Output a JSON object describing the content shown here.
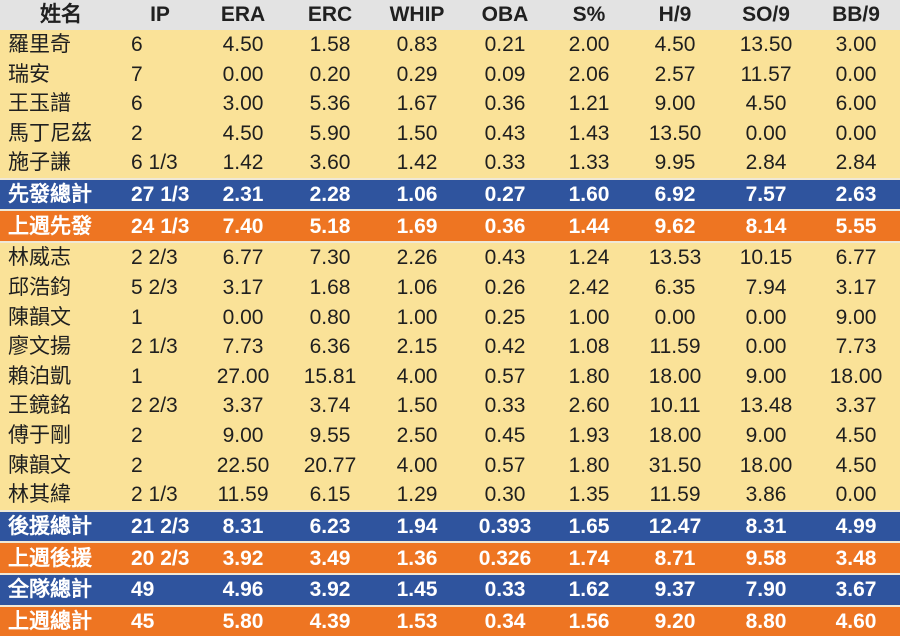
{
  "colors": {
    "row_yellow": "#FAE298",
    "row_blue": "#2F549E",
    "row_orange": "#EE7522",
    "header_bg": "#E3E3E3",
    "separator": "#EFE8D6",
    "text_dark": "#1F1F1F",
    "text_light": "#FFFFFF"
  },
  "chart_data": {
    "type": "table",
    "title": "",
    "legend": {
      "total_row_color": "#2F549E",
      "last_week_row_color": "#EE7522",
      "player_row_color": "#FAE298"
    },
    "columns": [
      {
        "key": "name",
        "label": "姓名"
      },
      {
        "key": "ip",
        "label": "IP"
      },
      {
        "key": "era",
        "label": "ERA"
      },
      {
        "key": "erc",
        "label": "ERC"
      },
      {
        "key": "whip",
        "label": "WHIP"
      },
      {
        "key": "oba",
        "label": "OBA"
      },
      {
        "key": "s_pct",
        "label": "S%"
      },
      {
        "key": "h9",
        "label": "H/9"
      },
      {
        "key": "so9",
        "label": "SO/9"
      },
      {
        "key": "bb9",
        "label": "BB/9"
      }
    ],
    "rows": [
      {
        "type": "player",
        "values": [
          "羅里奇",
          "6",
          "4.50",
          "1.58",
          "0.83",
          "0.21",
          "2.00",
          "4.50",
          "13.50",
          "3.00"
        ]
      },
      {
        "type": "player",
        "values": [
          "瑞安",
          "7",
          "0.00",
          "0.20",
          "0.29",
          "0.09",
          "2.06",
          "2.57",
          "11.57",
          "0.00"
        ]
      },
      {
        "type": "player",
        "values": [
          "王玉譜",
          "6",
          "3.00",
          "5.36",
          "1.67",
          "0.36",
          "1.21",
          "9.00",
          "4.50",
          "6.00"
        ]
      },
      {
        "type": "player",
        "values": [
          "馬丁尼茲",
          "2",
          "4.50",
          "5.90",
          "1.50",
          "0.43",
          "1.43",
          "13.50",
          "0.00",
          "0.00"
        ]
      },
      {
        "type": "player",
        "values": [
          "施子謙",
          "6 1/3",
          "1.42",
          "3.60",
          "1.42",
          "0.33",
          "1.33",
          "9.95",
          "2.84",
          "2.84"
        ]
      },
      {
        "type": "total-blue",
        "values": [
          "先發總計",
          "27 1/3",
          "2.31",
          "2.28",
          "1.06",
          "0.27",
          "1.60",
          "6.92",
          "7.57",
          "2.63"
        ]
      },
      {
        "type": "total-orange",
        "values": [
          "上週先發",
          "24 1/3",
          "7.40",
          "5.18",
          "1.69",
          "0.36",
          "1.44",
          "9.62",
          "8.14",
          "5.55"
        ]
      },
      {
        "type": "player",
        "values": [
          "林威志",
          "2 2/3",
          "6.77",
          "7.30",
          "2.26",
          "0.43",
          "1.24",
          "13.53",
          "10.15",
          "6.77"
        ]
      },
      {
        "type": "player",
        "values": [
          "邱浩鈞",
          "5 2/3",
          "3.17",
          "1.68",
          "1.06",
          "0.26",
          "2.42",
          "6.35",
          "7.94",
          "3.17"
        ]
      },
      {
        "type": "player",
        "values": [
          "陳韻文",
          "1",
          "0.00",
          "0.80",
          "1.00",
          "0.25",
          "1.00",
          "0.00",
          "0.00",
          "9.00"
        ]
      },
      {
        "type": "player",
        "values": [
          "廖文揚",
          "2 1/3",
          "7.73",
          "6.36",
          "2.15",
          "0.42",
          "1.08",
          "11.59",
          "0.00",
          "7.73"
        ]
      },
      {
        "type": "player",
        "values": [
          "賴泊凱",
          "1",
          "27.00",
          "15.81",
          "4.00",
          "0.57",
          "1.80",
          "18.00",
          "9.00",
          "18.00"
        ]
      },
      {
        "type": "player",
        "values": [
          "王鏡銘",
          "2 2/3",
          "3.37",
          "3.74",
          "1.50",
          "0.33",
          "2.60",
          "10.11",
          "13.48",
          "3.37"
        ]
      },
      {
        "type": "player",
        "values": [
          "傅于剛",
          "2",
          "9.00",
          "9.55",
          "2.50",
          "0.45",
          "1.93",
          "18.00",
          "9.00",
          "4.50"
        ]
      },
      {
        "type": "player",
        "values": [
          "陳韻文",
          "2",
          "22.50",
          "20.77",
          "4.00",
          "0.57",
          "1.80",
          "31.50",
          "18.00",
          "4.50"
        ]
      },
      {
        "type": "player",
        "values": [
          "林其緯",
          "2 1/3",
          "11.59",
          "6.15",
          "1.29",
          "0.30",
          "1.35",
          "11.59",
          "3.86",
          "0.00"
        ]
      },
      {
        "type": "total-blue",
        "values": [
          "後援總計",
          "21 2/3",
          "8.31",
          "6.23",
          "1.94",
          "0.393",
          "1.65",
          "12.47",
          "8.31",
          "4.99"
        ]
      },
      {
        "type": "total-orange",
        "values": [
          "上週後援",
          "20 2/3",
          "3.92",
          "3.49",
          "1.36",
          "0.326",
          "1.74",
          "8.71",
          "9.58",
          "3.48"
        ]
      },
      {
        "type": "total-blue",
        "values": [
          "全隊總計",
          "49",
          "4.96",
          "3.92",
          "1.45",
          "0.33",
          "1.62",
          "9.37",
          "7.90",
          "3.67"
        ]
      },
      {
        "type": "total-orange",
        "values": [
          "上週總計",
          "45",
          "5.80",
          "4.39",
          "1.53",
          "0.34",
          "1.56",
          "9.20",
          "8.80",
          "4.60"
        ]
      }
    ]
  }
}
